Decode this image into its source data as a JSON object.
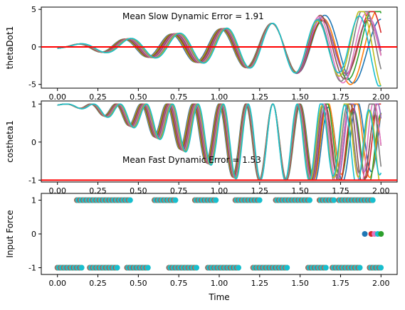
{
  "chart_data": [
    {
      "type": "line",
      "ylabel": "thetaDot1",
      "annotation": "Mean Slow Dynamic Error = 1.91",
      "xlim": [
        -0.1,
        2.1
      ],
      "ylim": [
        -5.5,
        5.3
      ],
      "xticks": [
        "0.00",
        "0.25",
        "0.50",
        "0.75",
        "1.00",
        "1.25",
        "1.50",
        "1.75",
        "2.00"
      ],
      "yticks": [
        "-5",
        "0",
        "5"
      ],
      "reference_line": {
        "y": 0,
        "color": "#ff0000"
      },
      "wave": {
        "base_amp": 0.2,
        "growth": 0.0165,
        "freq": 3.6,
        "start": 0.05
      },
      "series_colors": [
        "#1f77b4",
        "#ff7f0e",
        "#2ca02c",
        "#d62728",
        "#9467bd",
        "#8c564b",
        "#e377c2",
        "#7f7f7f",
        "#bcbd22",
        "#17becf"
      ]
    },
    {
      "type": "line",
      "ylabel": "costheta1",
      "annotation": "Mean Fast Dynamic Error = 1.53",
      "xlim": [
        -0.1,
        2.1
      ],
      "ylim": [
        -1.05,
        1.08
      ],
      "xticks": [
        "0.00",
        "0.25",
        "0.50",
        "0.75",
        "1.00",
        "1.25",
        "1.50",
        "1.75",
        "2.00"
      ],
      "yticks": [
        "-1",
        "0",
        "1"
      ],
      "reference_line": {
        "y": -1,
        "color": "#ff0000"
      },
      "wave": {
        "freq": 6.6,
        "start": 0.05
      },
      "series_colors": [
        "#1f77b4",
        "#ff7f0e",
        "#2ca02c",
        "#d62728",
        "#9467bd",
        "#8c564b",
        "#e377c2",
        "#7f7f7f",
        "#bcbd22",
        "#17becf"
      ]
    },
    {
      "type": "scatter",
      "ylabel": "Input Force",
      "xlabel": "Time",
      "xlim": [
        -0.1,
        2.1
      ],
      "ylim": [
        -1.2,
        1.2
      ],
      "xticks": [
        "0.00",
        "0.25",
        "0.50",
        "0.75",
        "1.00",
        "1.25",
        "1.50",
        "1.75",
        "2.00"
      ],
      "yticks": [
        "-1",
        "0",
        "1"
      ],
      "high_segments": [
        [
          0.12,
          0.44
        ],
        [
          0.6,
          0.72
        ],
        [
          0.85,
          0.98
        ],
        [
          1.1,
          1.24
        ],
        [
          1.35,
          1.55
        ],
        [
          1.62,
          1.7
        ],
        [
          1.74,
          1.95
        ]
      ],
      "low_segments": [
        [
          0.0,
          0.15
        ],
        [
          0.2,
          0.36
        ],
        [
          0.43,
          0.56
        ],
        [
          0.69,
          0.85
        ],
        [
          0.93,
          1.12
        ],
        [
          1.21,
          1.41
        ],
        [
          1.55,
          1.65
        ],
        [
          1.7,
          1.86
        ],
        [
          1.93,
          2.0
        ]
      ],
      "zero_points": [
        1.9,
        1.94,
        1.96,
        1.98,
        2.0
      ],
      "marker_colors": [
        "#1f77b4",
        "#ff7f0e",
        "#2ca02c",
        "#d62728",
        "#9467bd",
        "#8c564b",
        "#e377c2",
        "#7f7f7f",
        "#bcbd22",
        "#17becf"
      ]
    }
  ]
}
